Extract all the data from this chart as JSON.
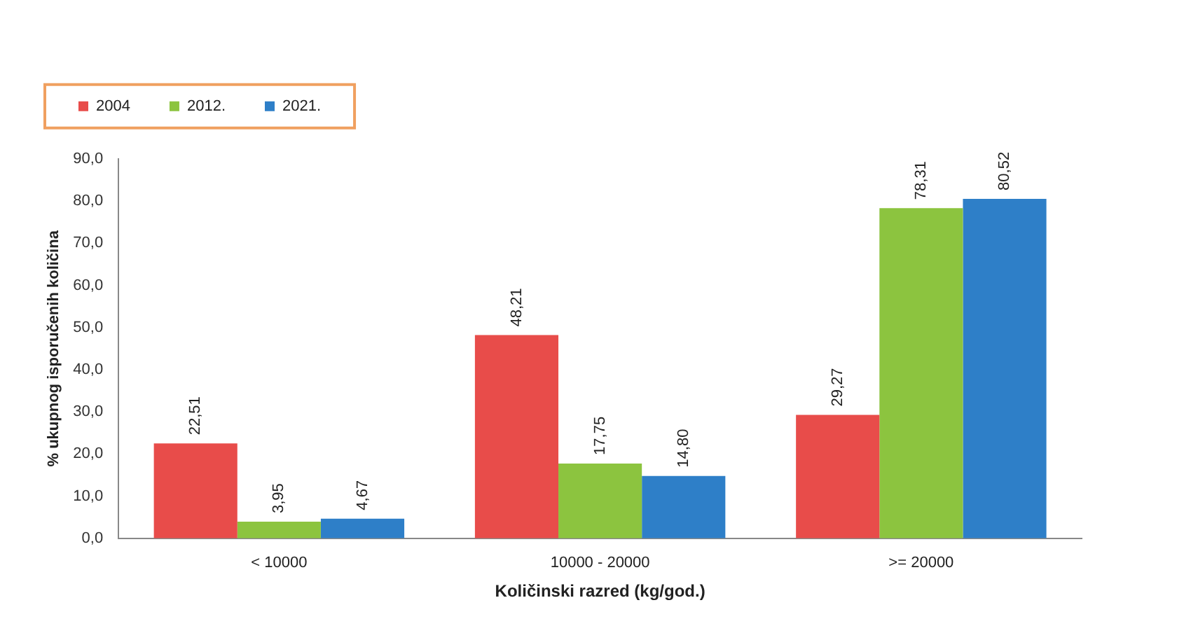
{
  "chart_data": {
    "type": "bar",
    "xlabel": "Količinski razred (kg/god.)",
    "ylabel": "% ukupnog isporučenih količina",
    "categories": [
      "< 10000",
      "10000 - 20000",
      ">= 20000"
    ],
    "series": [
      {
        "name": "2004",
        "color": "#e84c4a",
        "values": [
          22.51,
          48.21,
          29.27
        ],
        "value_labels": [
          "22,51",
          "48,21",
          "29,27"
        ]
      },
      {
        "name": "2012.",
        "color": "#8cc43f",
        "values": [
          3.95,
          17.75,
          78.31
        ],
        "value_labels": [
          "3,95",
          "17,75",
          "78,31"
        ]
      },
      {
        "name": "2021.",
        "color": "#2e7fc8",
        "values": [
          4.67,
          14.8,
          80.52
        ],
        "value_labels": [
          "4,67",
          "14,80",
          "80,52"
        ]
      }
    ],
    "ylim": [
      0,
      90
    ],
    "yticks": [
      {
        "value": 0,
        "label": "0,0"
      },
      {
        "value": 10,
        "label": "10,0"
      },
      {
        "value": 20,
        "label": "20,0"
      },
      {
        "value": 30,
        "label": "30,0"
      },
      {
        "value": 40,
        "label": "40,0"
      },
      {
        "value": 50,
        "label": "50,0"
      },
      {
        "value": 60,
        "label": "60,0"
      },
      {
        "value": 70,
        "label": "70,0"
      },
      {
        "value": 80,
        "label": "80,0"
      },
      {
        "value": 90,
        "label": "90,0"
      }
    ],
    "grid": false,
    "legend": "top"
  }
}
